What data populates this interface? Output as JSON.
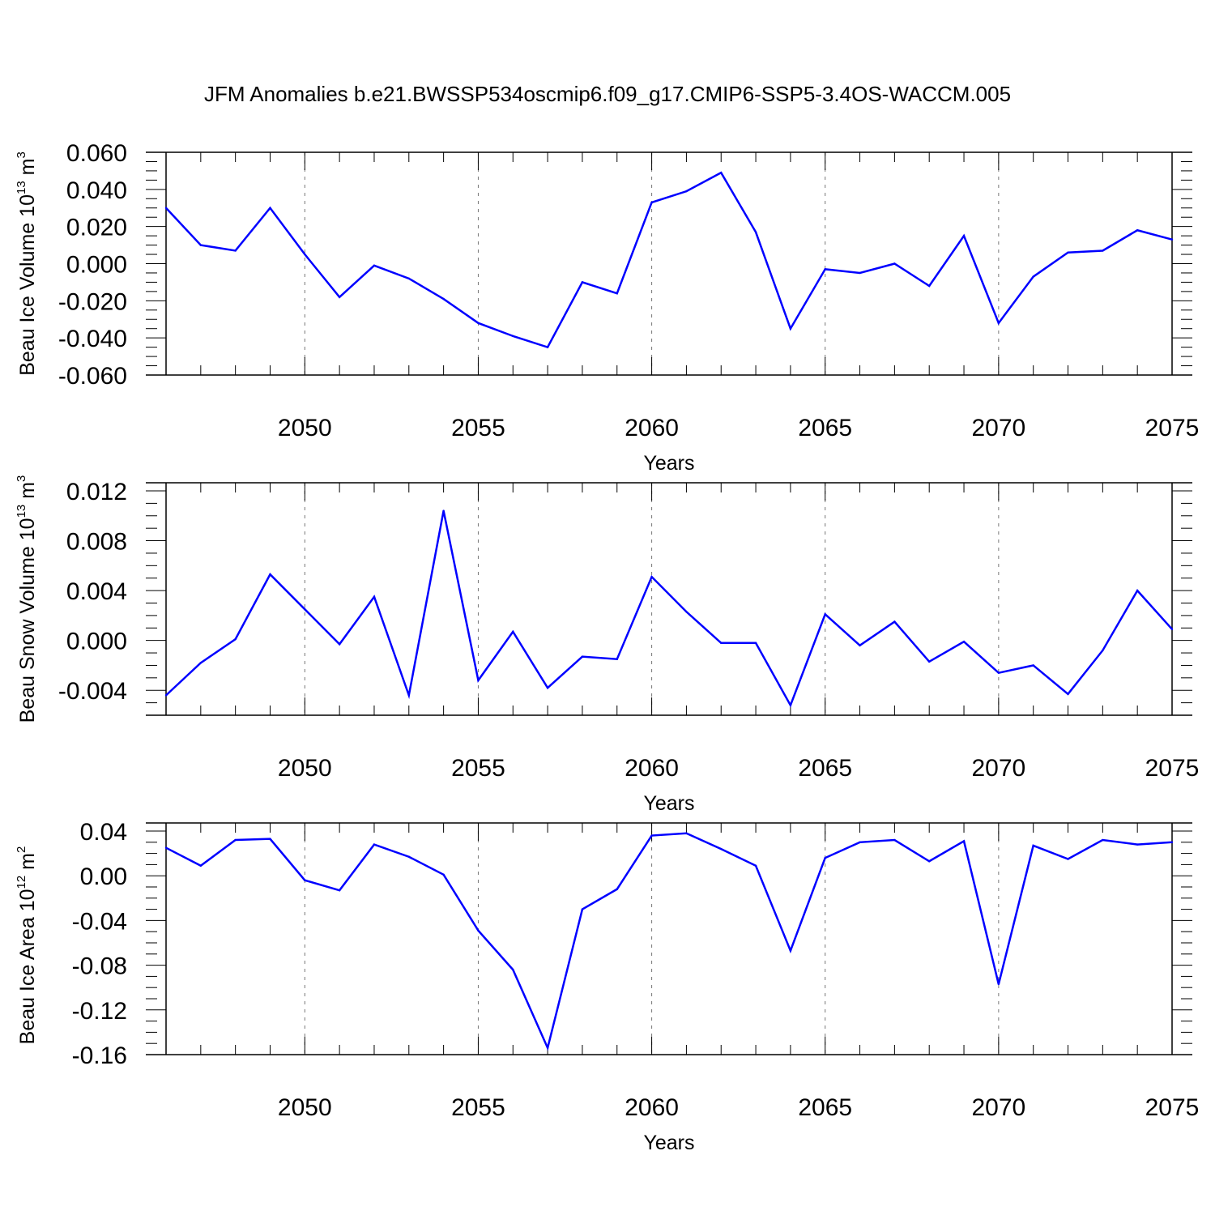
{
  "title": "JFM Anomalies b.e21.BWSSP534oscmip6.f09_g17.CMIP6-SSP5-3.4OS-WACCM.005",
  "colors": {
    "line": "#0000ff",
    "axis": "#000000",
    "grid": "#777777"
  },
  "chart_data": [
    {
      "type": "line",
      "ylabel": {
        "base": "Beau Ice Volume 10",
        "exponent": "13",
        "unit": " m",
        "unit_exponent": "3"
      },
      "xlabel": "Years",
      "xlim": [
        2046,
        2075
      ],
      "x_ticks": [
        "2050",
        "2055",
        "2060",
        "2065",
        "2070",
        "2075"
      ],
      "x_tick_values": [
        2050,
        2055,
        2060,
        2065,
        2070,
        2075
      ],
      "ylim": [
        -0.06,
        0.06
      ],
      "y_tick_values": [
        0.06,
        0.04,
        0.02,
        0.0,
        -0.02,
        -0.04,
        -0.06
      ],
      "y_ticks": [
        "0.060",
        "0.040",
        "0.020",
        "0.000",
        "-0.020",
        "-0.040",
        "-0.060"
      ],
      "grid": "dashed vertical at labeled years",
      "series": [
        {
          "name": "Beau Ice Volume",
          "x": [
            2046,
            2047,
            2048,
            2049,
            2050,
            2051,
            2052,
            2053,
            2054,
            2055,
            2056,
            2057,
            2058,
            2059,
            2060,
            2061,
            2062,
            2063,
            2064,
            2065,
            2066,
            2067,
            2068,
            2069,
            2070,
            2071,
            2072,
            2073,
            2074,
            2075
          ],
          "values": [
            0.03,
            0.01,
            0.007,
            0.03,
            0.005,
            -0.018,
            -0.001,
            -0.008,
            -0.019,
            -0.032,
            -0.039,
            -0.045,
            -0.01,
            -0.016,
            0.033,
            0.039,
            0.049,
            0.017,
            -0.035,
            -0.003,
            -0.005,
            0.0,
            -0.012,
            0.015,
            -0.032,
            -0.007,
            0.006,
            0.007,
            0.018,
            0.013
          ]
        }
      ]
    },
    {
      "type": "line",
      "ylabel": {
        "base": "Beau Snow Volume 10",
        "exponent": "13",
        "unit": " m",
        "unit_exponent": "3"
      },
      "xlabel": "Years",
      "xlim": [
        2046,
        2075
      ],
      "x_ticks": [
        "2050",
        "2055",
        "2060",
        "2065",
        "2070",
        "2075"
      ],
      "x_tick_values": [
        2050,
        2055,
        2060,
        2065,
        2070,
        2075
      ],
      "ylim": [
        -0.006,
        0.012
      ],
      "y_tick_values": [
        0.012,
        0.008,
        0.004,
        0.0,
        -0.004
      ],
      "y_ticks": [
        "0.012",
        "0.008",
        "0.004",
        "0.000",
        "-0.004"
      ],
      "grid": "dashed vertical at labeled years",
      "series": [
        {
          "name": "Beau Snow Volume",
          "x": [
            2046,
            2047,
            2048,
            2049,
            2050,
            2051,
            2052,
            2053,
            2054,
            2055,
            2056,
            2057,
            2058,
            2059,
            2060,
            2061,
            2062,
            2063,
            2064,
            2065,
            2066,
            2067,
            2068,
            2069,
            2070,
            2071,
            2072,
            2073,
            2074,
            2075
          ],
          "values": [
            -0.0044,
            -0.0018,
            0.0001,
            0.0053,
            0.0025,
            -0.0003,
            0.0035,
            -0.0044,
            0.0104,
            -0.0032,
            0.0007,
            -0.0038,
            -0.0013,
            -0.0015,
            0.0051,
            0.0023,
            -0.0002,
            -0.0002,
            -0.0052,
            0.0021,
            -0.0004,
            0.0015,
            -0.0017,
            -0.0001,
            -0.0026,
            -0.002,
            -0.0043,
            -0.0008,
            0.004,
            0.0009
          ]
        }
      ]
    },
    {
      "type": "line",
      "ylabel": {
        "base": "Beau Ice Area 10",
        "exponent": "12",
        "unit": " m",
        "unit_exponent": "2"
      },
      "xlabel": "Years",
      "xlim": [
        2046,
        2075
      ],
      "x_ticks": [
        "2050",
        "2055",
        "2060",
        "2065",
        "2070",
        "2075"
      ],
      "x_tick_values": [
        2050,
        2055,
        2060,
        2065,
        2070,
        2075
      ],
      "ylim": [
        -0.16,
        0.04
      ],
      "y_tick_values": [
        0.04,
        0.0,
        -0.04,
        -0.08,
        -0.12,
        -0.16
      ],
      "y_ticks": [
        "0.04",
        "0.00",
        "-0.04",
        "-0.08",
        "-0.12",
        "-0.16"
      ],
      "grid": "dashed vertical at labeled years",
      "series": [
        {
          "name": "Beau Ice Area",
          "x": [
            2046,
            2047,
            2048,
            2049,
            2050,
            2051,
            2052,
            2053,
            2054,
            2055,
            2056,
            2057,
            2058,
            2059,
            2060,
            2061,
            2062,
            2063,
            2064,
            2065,
            2066,
            2067,
            2068,
            2069,
            2070,
            2071,
            2072,
            2073,
            2074,
            2075
          ],
          "values": [
            0.025,
            0.009,
            0.032,
            0.033,
            -0.004,
            -0.013,
            0.028,
            0.017,
            0.001,
            -0.049,
            -0.084,
            -0.154,
            -0.03,
            -0.012,
            0.036,
            0.038,
            0.024,
            0.009,
            -0.067,
            0.016,
            0.03,
            0.032,
            0.013,
            0.031,
            -0.097,
            0.027,
            0.015,
            0.032,
            0.028,
            0.03
          ]
        }
      ]
    }
  ]
}
